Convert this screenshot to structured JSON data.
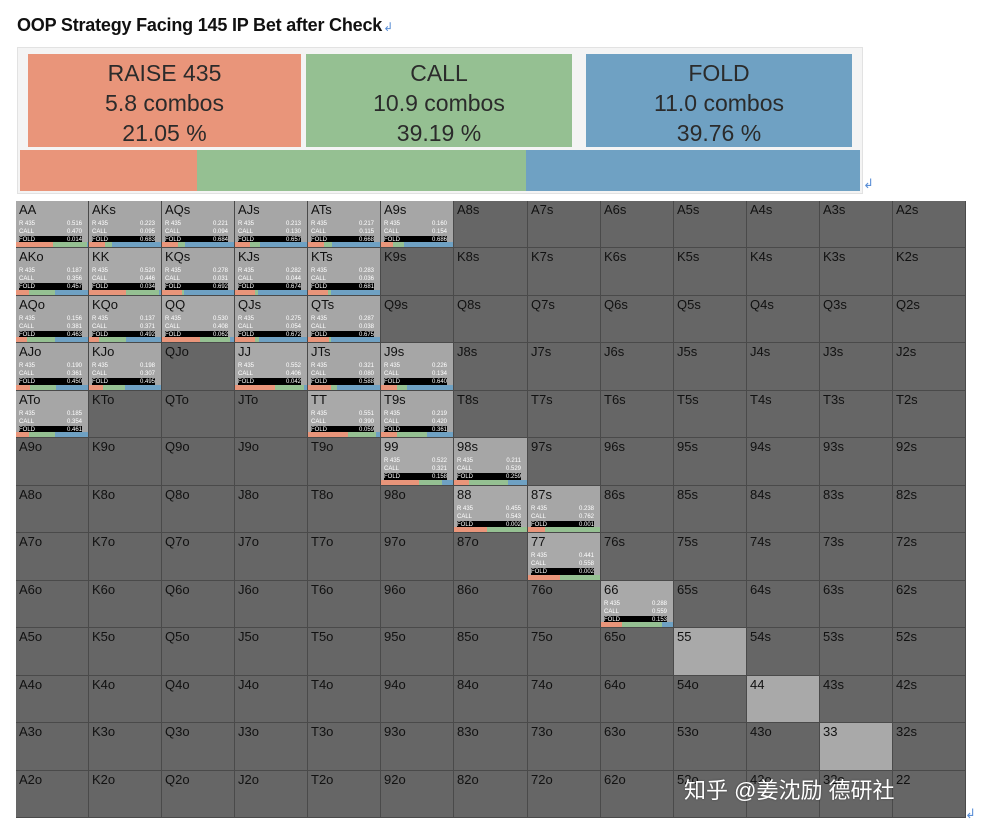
{
  "title": "OOP Strategy Facing 145 IP Bet after Check",
  "colors": {
    "raise": "#e9957a",
    "call": "#95c092",
    "fold": "#6fa1c3"
  },
  "summary": [
    {
      "key": "raise",
      "action": "RAISE 435",
      "combos": "5.8 combos",
      "percent": "21.05 %",
      "pct": 21.05
    },
    {
      "key": "call",
      "action": "CALL",
      "combos": "10.9 combos",
      "percent": "39.19 %",
      "pct": 39.19
    },
    {
      "key": "fold",
      "action": "FOLD",
      "combos": "11.0 combos",
      "percent": "39.76 %",
      "pct": 39.76
    }
  ],
  "action_labels": {
    "raise": "R 435",
    "call": "CALL",
    "fold": "FOLD"
  },
  "chart_data": {
    "type": "table",
    "title": "OOP Strategy Facing 145 IP Bet after Check",
    "rows": [
      [
        "AA",
        "AKs",
        "AQs",
        "AJs",
        "ATs",
        "A9s",
        "A8s",
        "A7s",
        "A6s",
        "A5s",
        "A4s",
        "A3s",
        "A2s"
      ],
      [
        "AKo",
        "KK",
        "KQs",
        "KJs",
        "KTs",
        "K9s",
        "K8s",
        "K7s",
        "K6s",
        "K5s",
        "K4s",
        "K3s",
        "K2s"
      ],
      [
        "AQo",
        "KQo",
        "QQ",
        "QJs",
        "QTs",
        "Q9s",
        "Q8s",
        "Q7s",
        "Q6s",
        "Q5s",
        "Q4s",
        "Q3s",
        "Q2s"
      ],
      [
        "AJo",
        "KJo",
        "QJo",
        "JJ",
        "JTs",
        "J9s",
        "J8s",
        "J7s",
        "J6s",
        "J5s",
        "J4s",
        "J3s",
        "J2s"
      ],
      [
        "ATo",
        "KTo",
        "QTo",
        "JTo",
        "TT",
        "T9s",
        "T8s",
        "T7s",
        "T6s",
        "T5s",
        "T4s",
        "T3s",
        "T2s"
      ],
      [
        "A9o",
        "K9o",
        "Q9o",
        "J9o",
        "T9o",
        "99",
        "98s",
        "97s",
        "96s",
        "95s",
        "94s",
        "93s",
        "92s"
      ],
      [
        "A8o",
        "K8o",
        "Q8o",
        "J8o",
        "T8o",
        "98o",
        "88",
        "87s",
        "86s",
        "85s",
        "84s",
        "83s",
        "82s"
      ],
      [
        "A7o",
        "K7o",
        "Q7o",
        "J7o",
        "T7o",
        "97o",
        "87o",
        "77",
        "76s",
        "75s",
        "74s",
        "73s",
        "72s"
      ],
      [
        "A6o",
        "K6o",
        "Q6o",
        "J6o",
        "T6o",
        "96o",
        "86o",
        "76o",
        "66",
        "65s",
        "64s",
        "63s",
        "62s"
      ],
      [
        "A5o",
        "K5o",
        "Q5o",
        "J5o",
        "T5o",
        "95o",
        "85o",
        "75o",
        "65o",
        "55",
        "54s",
        "53s",
        "52s"
      ],
      [
        "A4o",
        "K4o",
        "Q4o",
        "J4o",
        "T4o",
        "94o",
        "84o",
        "74o",
        "64o",
        "54o",
        "44",
        "43s",
        "42s"
      ],
      [
        "A3o",
        "K3o",
        "Q3o",
        "J3o",
        "T3o",
        "93o",
        "83o",
        "73o",
        "63o",
        "53o",
        "43o",
        "33",
        "32s"
      ],
      [
        "A2o",
        "K2o",
        "Q2o",
        "J2o",
        "T2o",
        "92o",
        "82o",
        "72o",
        "62o",
        "52o",
        "42o",
        "32o",
        "22"
      ]
    ],
    "strategy": {
      "AA": [
        "0.516",
        "0.470",
        "0.014"
      ],
      "AKs": [
        "0.223",
        "0.095",
        "0.683"
      ],
      "AQs": [
        "0.221",
        "0.094",
        "0.684"
      ],
      "AJs": [
        "0.213",
        "0.130",
        "0.657"
      ],
      "ATs": [
        "0.217",
        "0.115",
        "0.668"
      ],
      "A9s": [
        "0.160",
        "0.154",
        "0.686"
      ],
      "AKo": [
        "0.187",
        "0.356",
        "0.457"
      ],
      "KK": [
        "0.520",
        "0.446",
        "0.034"
      ],
      "KQs": [
        "0.278",
        "0.031",
        "0.692"
      ],
      "KJs": [
        "0.282",
        "0.044",
        "0.674"
      ],
      "KTs": [
        "0.283",
        "0.036",
        "0.681"
      ],
      "AQo": [
        "0.156",
        "0.381",
        "0.463"
      ],
      "KQo": [
        "0.137",
        "0.371",
        "0.492"
      ],
      "QQ": [
        "0.530",
        "0.408",
        "0.062"
      ],
      "QJs": [
        "0.275",
        "0.054",
        "0.672"
      ],
      "QTs": [
        "0.287",
        "0.038",
        "0.675"
      ],
      "AJo": [
        "0.190",
        "0.361",
        "0.450"
      ],
      "KJo": [
        "0.198",
        "0.307",
        "0.495"
      ],
      "JJ": [
        "0.552",
        "0.406",
        "0.042"
      ],
      "JTs": [
        "0.321",
        "0.080",
        "0.588"
      ],
      "J9s": [
        "0.226",
        "0.134",
        "0.640"
      ],
      "ATo": [
        "0.185",
        "0.354",
        "0.461"
      ],
      "TT": [
        "0.551",
        "0.390",
        "0.059"
      ],
      "T9s": [
        "0.219",
        "0.420",
        "0.361"
      ],
      "99": [
        "0.522",
        "0.321",
        "0.158"
      ],
      "98s": [
        "0.211",
        "0.529",
        "0.259"
      ],
      "88": [
        "0.455",
        "0.543",
        "0.002"
      ],
      "87s": [
        "0.238",
        "0.762",
        "0.001"
      ],
      "77": [
        "0.441",
        "0.558",
        "0.002"
      ],
      "66": [
        "0.288",
        "0.559",
        "0.153"
      ]
    },
    "highlighted_empty": [
      "55",
      "44",
      "33"
    ]
  },
  "watermark": "知乎 @姜沈励 德研社"
}
